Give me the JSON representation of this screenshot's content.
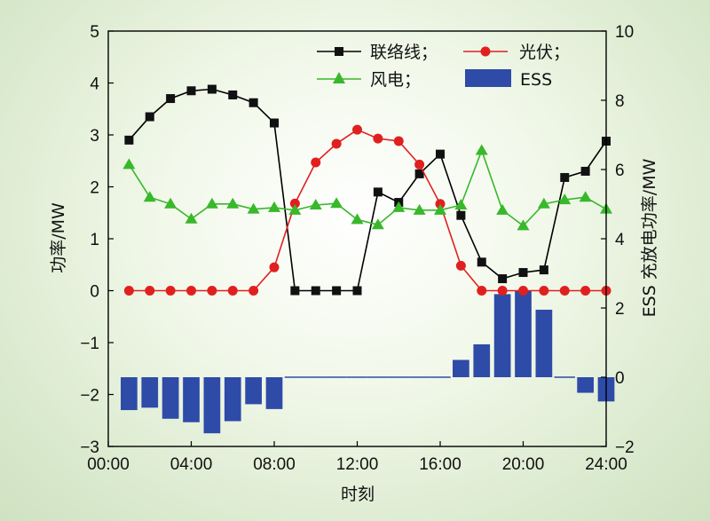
{
  "chart_data": {
    "type": "line",
    "title": "",
    "xlabel": "时刻",
    "ylabel_left": "功率/MW",
    "ylabel_right": "ESS 充放电功率/MW",
    "x_ticks": [
      "00:00",
      "04:00",
      "08:00",
      "12:00",
      "16:00",
      "20:00",
      "24:00"
    ],
    "x_values": [
      1,
      2,
      3,
      4,
      5,
      6,
      7,
      8,
      9,
      10,
      11,
      12,
      13,
      14,
      15,
      16,
      17,
      18,
      19,
      20,
      21,
      22,
      23,
      24
    ],
    "xlim": [
      0,
      24
    ],
    "ylim_left": [
      -3,
      5
    ],
    "ylim_right": [
      -2,
      10
    ],
    "yticks_left": [
      "−3",
      "−2",
      "−1",
      "0",
      "1",
      "2",
      "3",
      "4",
      "5"
    ],
    "yticks_right": [
      "−2",
      "0",
      "2",
      "4",
      "6",
      "8",
      "10"
    ],
    "legend_position": "top-right",
    "series": [
      {
        "name": "联络线；",
        "type": "line",
        "axis": "left",
        "marker": "square",
        "color": "#000000",
        "values": [
          2.9,
          3.35,
          3.7,
          3.85,
          3.88,
          3.77,
          3.62,
          3.23,
          0,
          0,
          0,
          0,
          1.9,
          1.7,
          2.25,
          2.63,
          1.45,
          0.55,
          0.23,
          0.35,
          0.4,
          2.18,
          2.3,
          2.88
        ]
      },
      {
        "name": "光伏；",
        "type": "line",
        "axis": "left",
        "marker": "circle",
        "color": "#e0201f",
        "values": [
          0,
          0,
          0,
          0,
          0,
          0,
          0,
          0.45,
          1.68,
          2.47,
          2.83,
          3.1,
          2.93,
          2.88,
          2.43,
          1.67,
          0.48,
          0,
          0,
          0,
          0,
          0,
          0,
          0
        ]
      },
      {
        "name": "风电；",
        "type": "line",
        "axis": "left",
        "marker": "triangle",
        "color": "#38b82a",
        "values": [
          2.43,
          1.8,
          1.67,
          1.38,
          1.67,
          1.67,
          1.57,
          1.6,
          1.55,
          1.65,
          1.68,
          1.37,
          1.27,
          1.6,
          1.55,
          1.55,
          1.65,
          2.7,
          1.55,
          1.25,
          1.67,
          1.75,
          1.8,
          1.57
        ]
      },
      {
        "name": "ESS",
        "type": "bar",
        "axis": "right",
        "color": "#2e4ba8",
        "values": [
          -0.95,
          -0.88,
          -1.2,
          -1.3,
          -1.62,
          -1.27,
          -0.78,
          -0.92,
          0,
          0,
          0,
          0,
          0,
          0,
          0,
          0,
          0.5,
          0.95,
          2.4,
          2.5,
          1.95,
          0,
          -0.45,
          -0.7
        ]
      }
    ]
  }
}
